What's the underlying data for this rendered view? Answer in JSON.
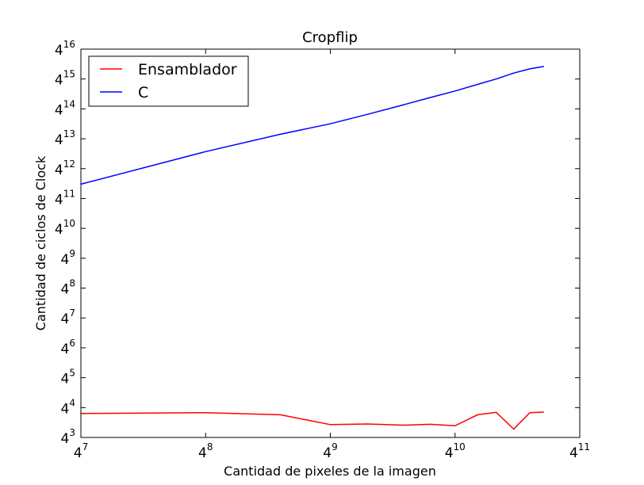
{
  "chart_data": {
    "type": "line",
    "title": "Cropflip",
    "xlabel": "Cantidad de pixeles de la imagen",
    "ylabel": "Cantidad de ciclos de Clock",
    "xscale": "log4",
    "yscale": "log4",
    "xlim_exponent": [
      7,
      11
    ],
    "ylim_exponent": [
      3,
      16
    ],
    "x_ticks": [
      {
        "base": "4",
        "exp": "7"
      },
      {
        "base": "4",
        "exp": "8"
      },
      {
        "base": "4",
        "exp": "9"
      },
      {
        "base": "4",
        "exp": "10"
      },
      {
        "base": "4",
        "exp": "11"
      }
    ],
    "y_ticks": [
      {
        "base": "4",
        "exp": "3"
      },
      {
        "base": "4",
        "exp": "4"
      },
      {
        "base": "4",
        "exp": "5"
      },
      {
        "base": "4",
        "exp": "6"
      },
      {
        "base": "4",
        "exp": "7"
      },
      {
        "base": "4",
        "exp": "8"
      },
      {
        "base": "4",
        "exp": "9"
      },
      {
        "base": "4",
        "exp": "10"
      },
      {
        "base": "4",
        "exp": "11"
      },
      {
        "base": "4",
        "exp": "12"
      },
      {
        "base": "4",
        "exp": "13"
      },
      {
        "base": "4",
        "exp": "14"
      },
      {
        "base": "4",
        "exp": "15"
      },
      {
        "base": "4",
        "exp": "16"
      }
    ],
    "grid": false,
    "legend_position": "top-left",
    "series": [
      {
        "name": "Ensamblador",
        "color": "#ff0000",
        "points_exponent": [
          [
            7.0,
            3.8
          ],
          [
            8.0,
            3.83
          ],
          [
            8.6,
            3.76
          ],
          [
            9.0,
            3.43
          ],
          [
            9.3,
            3.45
          ],
          [
            9.6,
            3.41
          ],
          [
            9.8,
            3.44
          ],
          [
            10.0,
            3.39
          ],
          [
            10.18,
            3.76
          ],
          [
            10.33,
            3.84
          ],
          [
            10.47,
            3.28
          ],
          [
            10.6,
            3.83
          ],
          [
            10.71,
            3.85
          ]
        ]
      },
      {
        "name": "C",
        "color": "#0000ff",
        "points_exponent": [
          [
            7.0,
            11.48
          ],
          [
            8.0,
            12.57
          ],
          [
            8.6,
            13.15
          ],
          [
            9.0,
            13.5
          ],
          [
            9.3,
            13.82
          ],
          [
            9.6,
            14.15
          ],
          [
            9.8,
            14.38
          ],
          [
            10.0,
            14.6
          ],
          [
            10.18,
            14.82
          ],
          [
            10.33,
            15.0
          ],
          [
            10.47,
            15.2
          ],
          [
            10.6,
            15.34
          ],
          [
            10.71,
            15.42
          ]
        ]
      }
    ]
  }
}
